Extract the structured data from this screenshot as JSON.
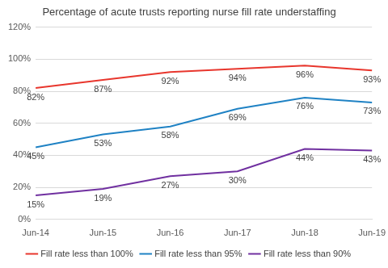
{
  "chart_data": {
    "type": "line",
    "title": "Percentage of acute trusts reporting nurse fill rate understaffing",
    "categories": [
      "Jun-14",
      "Jun-15",
      "Jun-16",
      "Jun-17",
      "Jun-18",
      "Jun-19"
    ],
    "series": [
      {
        "name": "Fill rate less than 100%",
        "color": "#e8362d",
        "values": [
          82,
          87,
          92,
          94,
          96,
          93
        ],
        "value_labels": [
          "82%",
          "87%",
          "92%",
          "94%",
          "96%",
          "93%"
        ]
      },
      {
        "name": "Fill rate less than 95%",
        "color": "#1f82c4",
        "values": [
          45,
          53,
          58,
          69,
          76,
          73
        ],
        "value_labels": [
          "45%",
          "53%",
          "58%",
          "69%",
          "76%",
          "73%"
        ]
      },
      {
        "name": "Fill rate less than 90%",
        "color": "#7030a0",
        "values": [
          15,
          19,
          27,
          30,
          44,
          43
        ],
        "value_labels": [
          "15%",
          "19%",
          "27%",
          "30%",
          "44%",
          "43%"
        ]
      }
    ],
    "ylim": [
      0,
      120
    ],
    "yticks": [
      {
        "value": 0,
        "label": "0%"
      },
      {
        "value": 20,
        "label": "20%"
      },
      {
        "value": 40,
        "label": "40%"
      },
      {
        "value": 60,
        "label": "60%"
      },
      {
        "value": 80,
        "label": "80%"
      },
      {
        "value": 100,
        "label": "100%"
      },
      {
        "value": 120,
        "label": "120%"
      }
    ],
    "grid": true,
    "legend": "bottom",
    "data_labels": true
  }
}
